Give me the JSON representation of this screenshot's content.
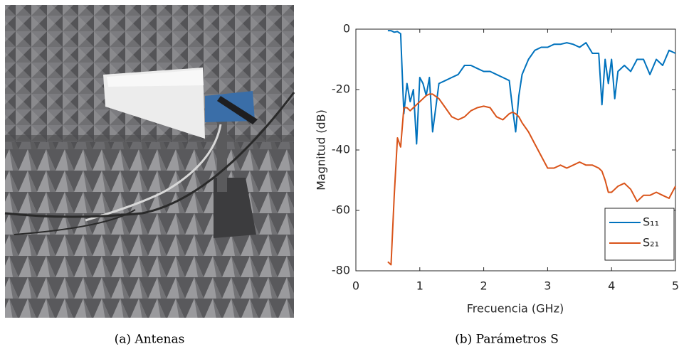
{
  "captions": [
    "(a)  Antenas",
    "(b)  Parámetros S"
  ],
  "chart_data": {
    "type": "line",
    "xlabel": "Frecuencia (GHz)",
    "ylabel": "Magnitud (dB)",
    "x": [
      0.5,
      0.55,
      0.6,
      0.65,
      0.7,
      0.75,
      0.8,
      0.85,
      0.9,
      0.95,
      1.0,
      1.05,
      1.1,
      1.15,
      1.2,
      1.3,
      1.4,
      1.5,
      1.6,
      1.7,
      1.8,
      1.9,
      2.0,
      2.1,
      2.2,
      2.3,
      2.4,
      2.45,
      2.5,
      2.55,
      2.6,
      2.7,
      2.8,
      2.9,
      3.0,
      3.1,
      3.2,
      3.3,
      3.4,
      3.5,
      3.6,
      3.7,
      3.8,
      3.85,
      3.9,
      3.95,
      4.0,
      4.05,
      4.1,
      4.2,
      4.3,
      4.4,
      4.5,
      4.6,
      4.7,
      4.8,
      4.9,
      5.0
    ],
    "series": [
      {
        "name": "S₁₁",
        "color": "#0072bd",
        "values": [
          -0.5,
          -0.5,
          -1,
          -0.8,
          -1.5,
          -28,
          -18,
          -24,
          -20,
          -38,
          -16,
          -18,
          -22,
          -16,
          -34,
          -18,
          -17,
          -16,
          -15,
          -12,
          -12,
          -13,
          -14,
          -14,
          -15,
          -16,
          -17,
          -26,
          -34,
          -22,
          -15,
          -10,
          -7,
          -6,
          -6,
          -5,
          -5,
          -4.5,
          -5,
          -6,
          -4.5,
          -8,
          -8,
          -25,
          -10,
          -18,
          -10,
          -23,
          -14,
          -12,
          -14,
          -10,
          -10,
          -15,
          -10,
          -12,
          -7,
          -8
        ]
      },
      {
        "name": "S₂₁",
        "color": "#d95319",
        "values": [
          -77,
          -78,
          -55,
          -36,
          -39,
          -26,
          -26,
          -27,
          -26,
          -25,
          -24,
          -23,
          -22,
          -21.5,
          -21.5,
          -23,
          -26,
          -29,
          -30,
          -29,
          -27,
          -26,
          -25.5,
          -26,
          -29,
          -30,
          -28,
          -27.5,
          -28,
          -29,
          -31,
          -34,
          -38,
          -42,
          -46,
          -46,
          -45,
          -46,
          -45,
          -44,
          -45,
          -45,
          -46,
          -47,
          -50,
          -54,
          -54,
          -53,
          -52,
          -51,
          -53,
          -57,
          -55,
          -55,
          -54,
          -55,
          -56,
          -52
        ]
      }
    ],
    "xlim": [
      0,
      5
    ],
    "xticks": [
      0,
      1,
      2,
      3,
      4,
      5
    ],
    "ylim": [
      -80,
      0
    ],
    "yticks": [
      -80,
      -60,
      -40,
      -20,
      0
    ],
    "legend": "lower right"
  }
}
